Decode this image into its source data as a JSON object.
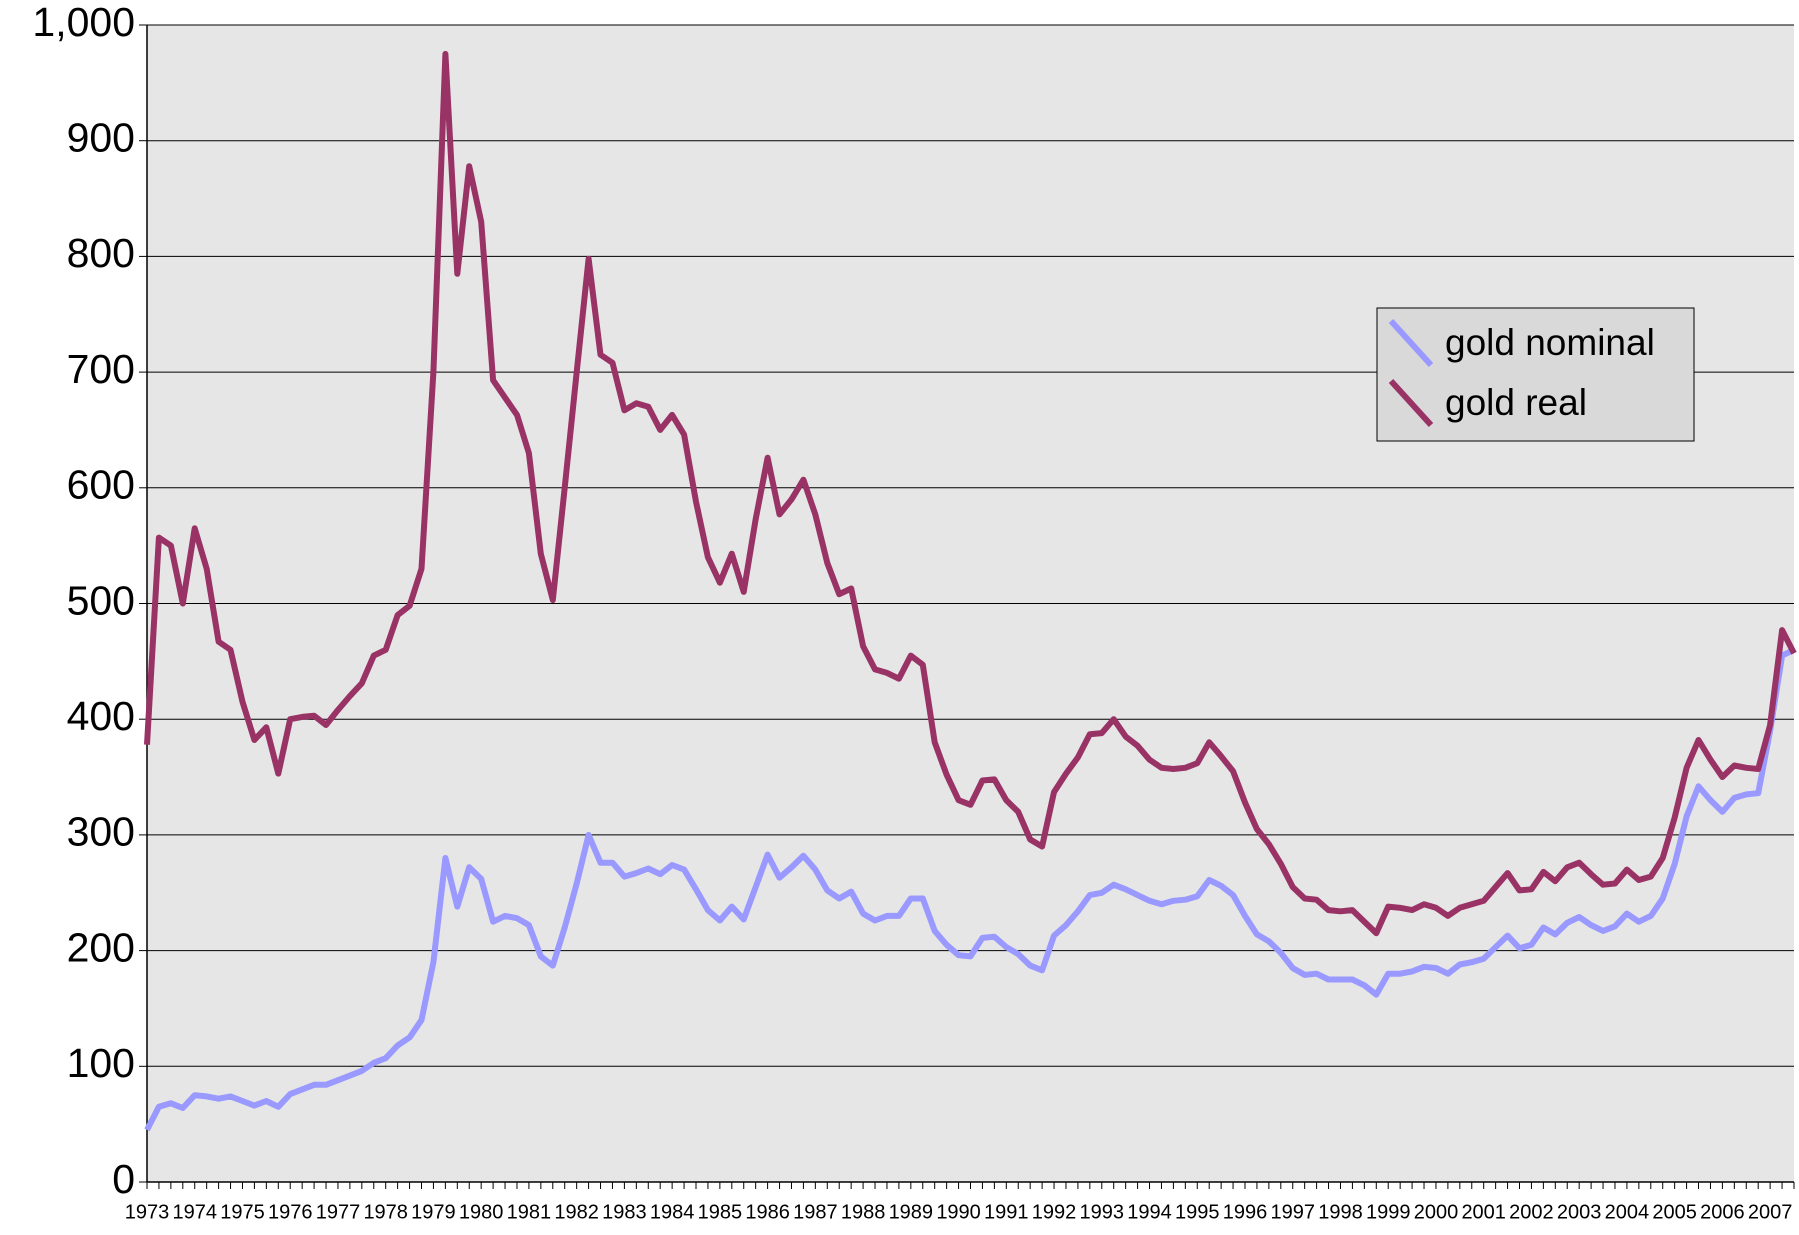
{
  "chart_data": {
    "type": "line",
    "categories": [
      "1973",
      null,
      null,
      null,
      "1974",
      null,
      null,
      null,
      "1975",
      null,
      null,
      null,
      "1976",
      null,
      null,
      null,
      "1977",
      null,
      null,
      null,
      "1978",
      null,
      null,
      null,
      "1979",
      null,
      null,
      null,
      "1980",
      null,
      null,
      null,
      "1981",
      null,
      null,
      null,
      "1982",
      null,
      null,
      null,
      "1983",
      null,
      null,
      null,
      "1984",
      null,
      null,
      null,
      "1985",
      null,
      null,
      null,
      "1986",
      null,
      null,
      null,
      "1987",
      null,
      null,
      null,
      "1988",
      null,
      null,
      null,
      "1989",
      null,
      null,
      null,
      "1990",
      null,
      null,
      null,
      "1991",
      null,
      null,
      null,
      "1992",
      null,
      null,
      null,
      "1993",
      null,
      null,
      null,
      "1994",
      null,
      null,
      null,
      "1995",
      null,
      null,
      null,
      "1996",
      null,
      null,
      null,
      "1997",
      null,
      null,
      null,
      "1998",
      null,
      null,
      null,
      "1999",
      null,
      null,
      null,
      "2000",
      null,
      null,
      null,
      "2001",
      null,
      null,
      null,
      "2002",
      null,
      null,
      null,
      "2003",
      null,
      null,
      null,
      "2004",
      null,
      null,
      null,
      "2005",
      null,
      null,
      null,
      "2006",
      null,
      null,
      null,
      "2007",
      null,
      null
    ],
    "series": [
      {
        "name": "gold nominal",
        "color": "#9999ff",
        "values": [
          45,
          65,
          68,
          64,
          75,
          74,
          72,
          74,
          70,
          66,
          70,
          65,
          76,
          80,
          84,
          84,
          88,
          92,
          96,
          103,
          107,
          118,
          125,
          140,
          190,
          280,
          238,
          272,
          262,
          225,
          230,
          228,
          222,
          195,
          187,
          220,
          258,
          300,
          276,
          276,
          264,
          267,
          271,
          266,
          274,
          270,
          253,
          235,
          226,
          238,
          227,
          255,
          283,
          263,
          272,
          282,
          270,
          252,
          245,
          251,
          232,
          226,
          230,
          230,
          245,
          245,
          217,
          205,
          196,
          195,
          211,
          212,
          203,
          197,
          187,
          183,
          213,
          222,
          234,
          248,
          250,
          257,
          253,
          248,
          243,
          240,
          243,
          244,
          247,
          261,
          256,
          248,
          230,
          214,
          208,
          198,
          185,
          179,
          180,
          175,
          175,
          175,
          170,
          162,
          180,
          180,
          182,
          186,
          185,
          180,
          188,
          190,
          193,
          203,
          213,
          202,
          205,
          220,
          214,
          224,
          229,
          222,
          217,
          221,
          232,
          225,
          230,
          245,
          275,
          316,
          342,
          330,
          320,
          332,
          335,
          336,
          390,
          455,
          460
        ]
      },
      {
        "name": "gold real",
        "color": "#993366",
        "values": [
          378,
          557,
          550,
          500,
          565,
          530,
          467,
          460,
          415,
          382,
          393,
          353,
          400,
          402,
          403,
          395,
          408,
          420,
          431,
          455,
          460,
          490,
          498,
          530,
          700,
          975,
          785,
          878,
          830,
          693,
          678,
          663,
          630,
          543,
          503,
          600,
          700,
          798,
          715,
          708,
          667,
          673,
          670,
          650,
          663,
          646,
          588,
          540,
          518,
          543,
          510,
          573,
          626,
          577,
          590,
          607,
          577,
          535,
          508,
          513,
          463,
          443,
          440,
          435,
          455,
          447,
          380,
          352,
          330,
          326,
          347,
          348,
          330,
          320,
          296,
          290,
          337,
          353,
          367,
          387,
          388,
          400,
          385,
          377,
          365,
          358,
          357,
          358,
          362,
          380,
          368,
          355,
          328,
          305,
          292,
          275,
          255,
          245,
          244,
          235,
          234,
          235,
          225,
          215,
          238,
          237,
          235,
          240,
          237,
          230,
          237,
          240,
          243,
          255,
          267,
          252,
          253,
          268,
          260,
          272,
          276,
          266,
          257,
          258,
          270,
          261,
          264,
          280,
          315,
          358,
          382,
          365,
          350,
          360,
          358,
          357,
          395,
          477,
          457
        ]
      }
    ],
    "ylim": [
      0,
      1000
    ],
    "yticks": [
      0,
      100,
      200,
      300,
      400,
      500,
      600,
      700,
      800,
      900,
      {
        "value": 1000,
        "label": "1,000"
      }
    ],
    "grid": true,
    "legend": "upper right"
  }
}
